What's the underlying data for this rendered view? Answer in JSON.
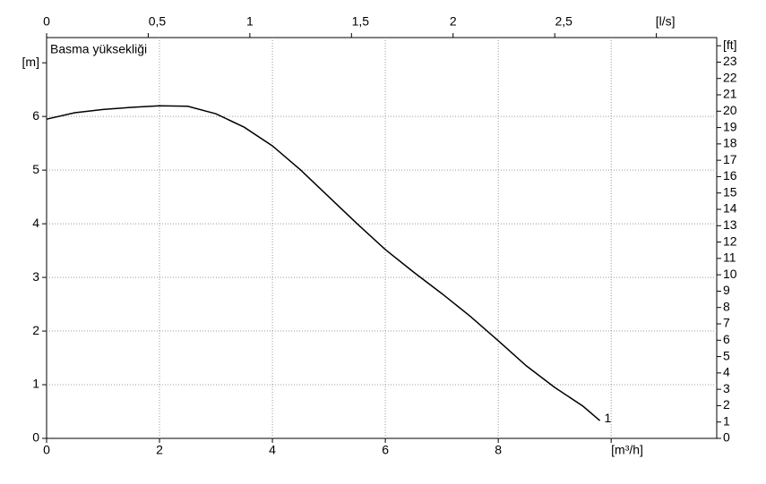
{
  "chart_data": {
    "type": "line",
    "title": "Basma yüksekliği",
    "x": [
      0,
      0.5,
      1,
      1.5,
      2,
      2.5,
      3,
      3.5,
      4,
      4.5,
      5,
      5.5,
      6,
      6.5,
      7,
      7.5,
      8,
      8.5,
      9,
      9.5,
      9.8
    ],
    "series": [
      {
        "name": "1",
        "color": "#000000",
        "values": [
          5.95,
          6.07,
          6.13,
          6.17,
          6.2,
          6.19,
          6.05,
          5.8,
          5.45,
          5.0,
          4.5,
          4.0,
          3.52,
          3.1,
          2.7,
          2.28,
          1.82,
          1.35,
          0.95,
          0.6,
          0.33
        ]
      }
    ],
    "xlim": [
      0,
      11.87
    ],
    "ylim": [
      0,
      7.47
    ],
    "xticks": [
      0,
      2,
      4,
      6,
      8,
      {
        "value": 10,
        "label": "[m³/h]"
      }
    ],
    "yticks": [
      0,
      1,
      2,
      3,
      4,
      5,
      6,
      {
        "value": 7,
        "label": "[m]"
      }
    ],
    "x2lim": [
      0,
      3.297
    ],
    "x2ticks": [
      0,
      {
        "value": 0.5,
        "label": "0,5"
      },
      1,
      {
        "value": 1.5,
        "label": "1,5"
      },
      2,
      {
        "value": 2.5,
        "label": "2,5"
      },
      {
        "value": 3,
        "label": "[l/s]"
      }
    ],
    "y2lim": [
      0,
      24.5
    ],
    "y2ticks": [
      0,
      1,
      2,
      3,
      4,
      5,
      6,
      7,
      8,
      9,
      10,
      11,
      12,
      13,
      14,
      15,
      16,
      17,
      18,
      19,
      20,
      21,
      22,
      23,
      {
        "value": 24,
        "label": "[ft]"
      }
    ],
    "grid": true
  }
}
